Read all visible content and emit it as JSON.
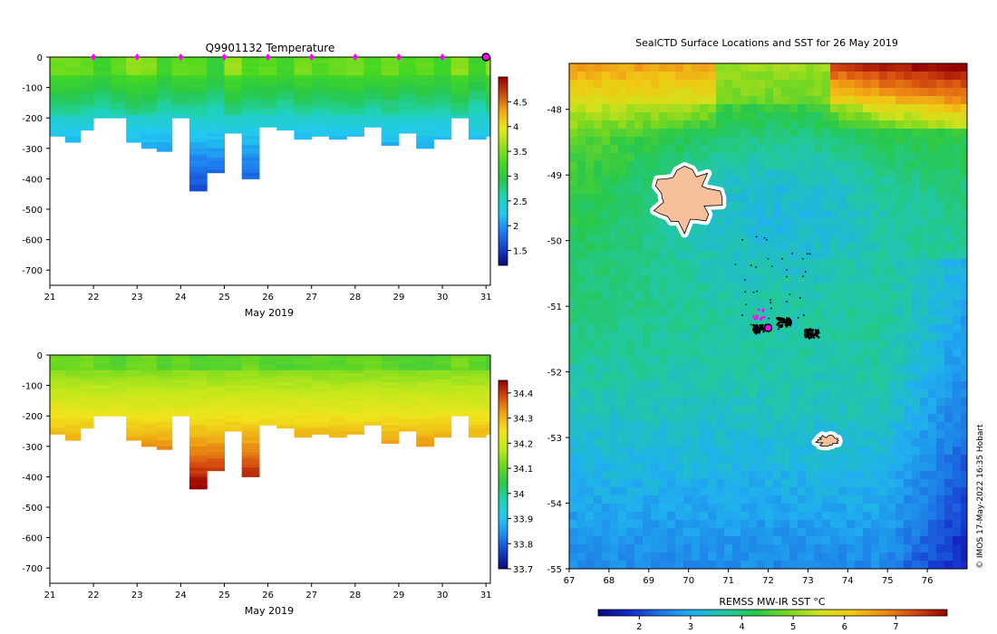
{
  "colors": {
    "temp_scale": [
      "#0a0a78",
      "#1440c8",
      "#1e7ef0",
      "#22c8f0",
      "#20d2b4",
      "#28c84a",
      "#46d820",
      "#98e01c",
      "#e8e81c",
      "#f0aa14",
      "#c84a10",
      "#960000"
    ],
    "sal_scale": [
      "#0a0a78",
      "#1440c8",
      "#1e8cf0",
      "#22c8f0",
      "#20d2b4",
      "#28c84a",
      "#6ad820",
      "#c0e81c",
      "#f0e41c",
      "#f0aa14",
      "#d85010",
      "#960000"
    ],
    "sst_scale": [
      "#0a0a82",
      "#1428c8",
      "#1e78e6",
      "#20b0f0",
      "#22c8a0",
      "#28c84a",
      "#78d820",
      "#d2e21c",
      "#f0c814",
      "#f08c14",
      "#d24610",
      "#960000"
    ],
    "island_fill": "#f5c09a",
    "marker": "#ff00ff"
  },
  "chart_data": [
    {
      "type": "heatmap",
      "title": "Q9901132  Temperature",
      "xlabel": "May 2019",
      "ylabel": "",
      "x_ticks": [
        "21",
        "22",
        "23",
        "24",
        "25",
        "26",
        "27",
        "28",
        "29",
        "30",
        "31"
      ],
      "xlim": [
        21,
        31.1
      ],
      "y_ticks": [
        "0",
        "-100",
        "-200",
        "-300",
        "-400",
        "-500",
        "-600",
        "-700"
      ],
      "ylim": [
        -750,
        0
      ],
      "colorbar": {
        "ticks": [
          "1.5",
          "2",
          "2.5",
          "3",
          "3.5",
          "4",
          "4.5"
        ],
        "range": [
          1.2,
          5.0
        ]
      },
      "profile_markers": [
        22,
        23,
        24,
        25,
        26,
        27,
        28,
        29,
        30
      ],
      "last_marker": 31,
      "profiles": [
        {
          "t": 21.0,
          "depth": 255
        },
        {
          "t": 21.35,
          "depth": 275
        },
        {
          "t": 21.7,
          "depth": 240
        },
        {
          "t": 22.0,
          "depth": 200
        },
        {
          "t": 22.4,
          "depth": 200
        },
        {
          "t": 22.75,
          "depth": 275
        },
        {
          "t": 23.1,
          "depth": 300
        },
        {
          "t": 23.45,
          "depth": 310
        },
        {
          "t": 23.8,
          "depth": 200
        },
        {
          "t": 24.2,
          "depth": 435
        },
        {
          "t": 24.6,
          "depth": 375
        },
        {
          "t": 25.0,
          "depth": 245
        },
        {
          "t": 25.4,
          "depth": 395
        },
        {
          "t": 25.8,
          "depth": 225
        },
        {
          "t": 26.2,
          "depth": 235
        },
        {
          "t": 26.6,
          "depth": 270
        },
        {
          "t": 27.0,
          "depth": 255
        },
        {
          "t": 27.4,
          "depth": 265
        },
        {
          "t": 27.8,
          "depth": 255
        },
        {
          "t": 28.2,
          "depth": 225
        },
        {
          "t": 28.6,
          "depth": 290
        },
        {
          "t": 29.0,
          "depth": 245
        },
        {
          "t": 29.4,
          "depth": 300
        },
        {
          "t": 29.8,
          "depth": 265
        },
        {
          "t": 30.2,
          "depth": 200
        },
        {
          "t": 30.6,
          "depth": 265
        },
        {
          "t": 31.0,
          "depth": 255
        }
      ]
    },
    {
      "type": "heatmap",
      "title": "",
      "xlabel": "May 2019",
      "ylabel": "",
      "x_ticks": [
        "21",
        "22",
        "23",
        "24",
        "25",
        "26",
        "27",
        "28",
        "29",
        "30",
        "31"
      ],
      "xlim": [
        21,
        31.1
      ],
      "y_ticks": [
        "0",
        "-100",
        "-200",
        "-300",
        "-400",
        "-500",
        "-600",
        "-700"
      ],
      "ylim": [
        -750,
        0
      ],
      "colorbar": {
        "ticks": [
          "33.7",
          "33.8",
          "33.9",
          "34",
          "34.1",
          "34.2",
          "34.3",
          "34.4"
        ],
        "range": [
          33.7,
          34.45
        ]
      }
    },
    {
      "type": "heatmap",
      "title": "SealCTD Surface Locations and SST for 26 May 2019",
      "xlabel": "",
      "ylabel": "",
      "x_ticks": [
        "67",
        "68",
        "69",
        "70",
        "71",
        "72",
        "73",
        "74",
        "75",
        "76"
      ],
      "xlim": [
        67,
        77
      ],
      "y_ticks": [
        "-48",
        "-49",
        "-50",
        "-51",
        "-52",
        "-53",
        "-54",
        "-55"
      ],
      "ylim": [
        -55,
        -47.3
      ],
      "colorbar": {
        "label": "REMSS MW-IR SST °C",
        "ticks": [
          "2",
          "3",
          "4",
          "5",
          "6",
          "7"
        ],
        "range": [
          1.2,
          8.0
        ]
      },
      "kerguelen_center": [
        69.9,
        -49.35
      ],
      "heard_island_center": [
        73.5,
        -53.05
      ],
      "current_position": [
        72.0,
        -51.33
      ],
      "dive_clusters": [
        [
          71.8,
          -51.35
        ],
        [
          72.4,
          -51.25
        ],
        [
          73.1,
          -51.42
        ]
      ]
    }
  ],
  "footer": {
    "credit": "© IMOS 17-May-2022 16:35 Hobart"
  }
}
